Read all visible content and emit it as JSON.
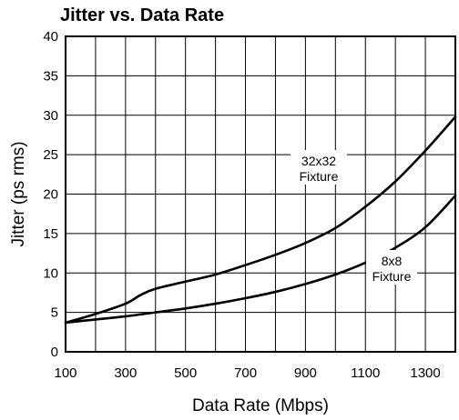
{
  "chart_data": {
    "type": "line",
    "title": "Jitter vs. Data Rate",
    "xlabel": "Data Rate (Mbps)",
    "ylabel": "Jitter (ps rms)",
    "xlim": [
      100,
      1400
    ],
    "ylim": [
      0,
      40
    ],
    "x_ticks": [
      100,
      300,
      500,
      700,
      900,
      1100,
      1300
    ],
    "y_ticks": [
      0,
      5,
      10,
      15,
      20,
      25,
      30,
      35,
      40
    ],
    "grid": true,
    "series": [
      {
        "name": "32x32 Fixture",
        "x": [
          100,
          200,
          300,
          350,
          400,
          500,
          600,
          700,
          800,
          900,
          1000,
          1100,
          1200,
          1300,
          1400
        ],
        "y": [
          3.7,
          4.8,
          6.1,
          7.2,
          8.0,
          8.9,
          9.8,
          11.0,
          12.3,
          13.8,
          15.7,
          18.4,
          21.6,
          25.5,
          29.8
        ]
      },
      {
        "name": "8x8 Fixture",
        "x": [
          100,
          200,
          300,
          400,
          500,
          600,
          700,
          800,
          900,
          1000,
          1100,
          1200,
          1300,
          1400
        ],
        "y": [
          3.7,
          4.1,
          4.5,
          5.0,
          5.5,
          6.1,
          6.8,
          7.6,
          8.6,
          9.8,
          11.3,
          13.2,
          15.8,
          19.8
        ]
      }
    ],
    "annotations": [
      {
        "line1": "32x32",
        "line2": "Fixture",
        "series": 0
      },
      {
        "line1": "8x8",
        "line2": "Fixture",
        "series": 1
      }
    ]
  }
}
